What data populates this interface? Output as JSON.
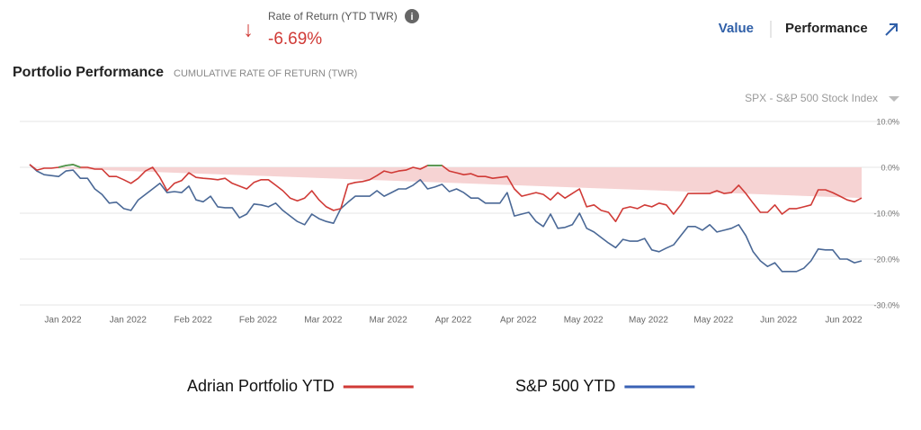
{
  "header": {
    "rate_label": "Rate of Return (YTD TWR)",
    "rate_value": "-6.69%",
    "tab_value": "Value",
    "tab_performance": "Performance",
    "section_title": "Portfolio Performance",
    "section_subtitle": "CUMULATIVE RATE OF RETURN (TWR)",
    "benchmark_select": "SPX - S&P 500 Stock Index"
  },
  "chart_data": {
    "type": "line",
    "x_labels": [
      "Jan 2022",
      "Jan 2022",
      "Feb 2022",
      "Feb 2022",
      "Mar 2022",
      "Mar 2022",
      "Apr 2022",
      "Apr 2022",
      "May 2022",
      "May 2022",
      "May 2022",
      "Jun 2022",
      "Jun 2022"
    ],
    "ylim": [
      -30,
      10
    ],
    "yticks": [
      {
        "value": 10,
        "label": "10.0%"
      },
      {
        "value": 0,
        "label": "0.0%"
      },
      {
        "value": -10,
        "label": "-10.0%"
      },
      {
        "value": -20,
        "label": "-20.0%"
      },
      {
        "value": -30,
        "label": "-30.0%"
      }
    ],
    "grid": true,
    "positive_color": "#4e9a4e",
    "area_color": "#f6d3d3",
    "series": [
      {
        "name": "Adrian Portfolio YTD",
        "color": "#d03a36",
        "values": [
          0.6,
          -0.6,
          -0.2,
          -0.2,
          0,
          0.4,
          0.6,
          0,
          0,
          -0.4,
          -0.4,
          -2.0,
          -2.0,
          -2.7,
          -3.5,
          -2.4,
          -0.8,
          0,
          -2.2,
          -5.1,
          -3.5,
          -2.9,
          -1.2,
          -2.2,
          -2.4,
          -2.5,
          -2.7,
          -2.4,
          -3.5,
          -4.1,
          -4.7,
          -3.3,
          -2.7,
          -2.7,
          -3.9,
          -5.1,
          -6.7,
          -7.3,
          -6.7,
          -5.1,
          -7.1,
          -8.6,
          -9.4,
          -9.0,
          -3.7,
          -3.3,
          -3.1,
          -2.7,
          -1.8,
          -0.8,
          -1.2,
          -0.8,
          -0.6,
          0,
          -0.4,
          0.4,
          0.4,
          0.4,
          -0.8,
          -1.2,
          -1.6,
          -1.4,
          -2.0,
          -2.0,
          -2.4,
          -2.2,
          -2.0,
          -4.7,
          -6.3,
          -5.9,
          -5.5,
          -5.9,
          -7.1,
          -5.5,
          -6.7,
          -5.7,
          -4.7,
          -8.6,
          -8.2,
          -9.4,
          -9.8,
          -11.8,
          -9.0,
          -8.6,
          -9.0,
          -8.2,
          -8.6,
          -7.8,
          -8.2,
          -10.2,
          -8.2,
          -5.7,
          -5.7,
          -5.7,
          -5.7,
          -5.1,
          -5.7,
          -5.5,
          -3.9,
          -5.7,
          -7.8,
          -9.8,
          -9.8,
          -8.2,
          -10.2,
          -9.0,
          -9.0,
          -8.6,
          -8.2,
          -4.9,
          -4.9,
          -5.5,
          -6.3,
          -7.1,
          -7.5,
          -6.69
        ]
      },
      {
        "name": "S&P 500 YTD",
        "color": "#4a6896",
        "legend_color": "#3a62b5",
        "values": [
          0.6,
          -0.8,
          -1.6,
          -1.8,
          -2.0,
          -0.8,
          -0.6,
          -2.4,
          -2.4,
          -4.7,
          -5.9,
          -7.8,
          -7.6,
          -9.0,
          -9.4,
          -7.1,
          -5.9,
          -4.7,
          -3.5,
          -5.5,
          -5.3,
          -5.5,
          -4.1,
          -7.1,
          -7.5,
          -6.3,
          -8.6,
          -8.8,
          -8.8,
          -11.0,
          -10.2,
          -8.0,
          -8.2,
          -8.6,
          -7.8,
          -9.4,
          -10.6,
          -11.8,
          -12.5,
          -10.2,
          -11.2,
          -11.8,
          -12.2,
          -9.0,
          -7.6,
          -6.3,
          -6.3,
          -6.3,
          -5.1,
          -6.3,
          -5.5,
          -4.7,
          -4.7,
          -3.9,
          -2.7,
          -4.7,
          -4.3,
          -3.7,
          -5.3,
          -4.7,
          -5.5,
          -6.7,
          -6.7,
          -7.8,
          -7.8,
          -7.8,
          -5.5,
          -10.6,
          -10.2,
          -9.8,
          -11.8,
          -12.9,
          -10.2,
          -13.3,
          -13.1,
          -12.5,
          -10.0,
          -13.3,
          -14.1,
          -15.3,
          -16.5,
          -17.5,
          -15.7,
          -16.1,
          -16.1,
          -15.5,
          -18.0,
          -18.4,
          -17.6,
          -16.9,
          -14.9,
          -12.9,
          -12.9,
          -13.7,
          -12.5,
          -14.1,
          -13.7,
          -13.3,
          -12.5,
          -14.9,
          -18.4,
          -20.4,
          -21.6,
          -20.8,
          -22.7,
          -22.7,
          -22.7,
          -22.0,
          -20.4,
          -17.8,
          -18.0,
          -18.0,
          -20.0,
          -20.0,
          -20.8,
          -20.4
        ]
      }
    ]
  }
}
